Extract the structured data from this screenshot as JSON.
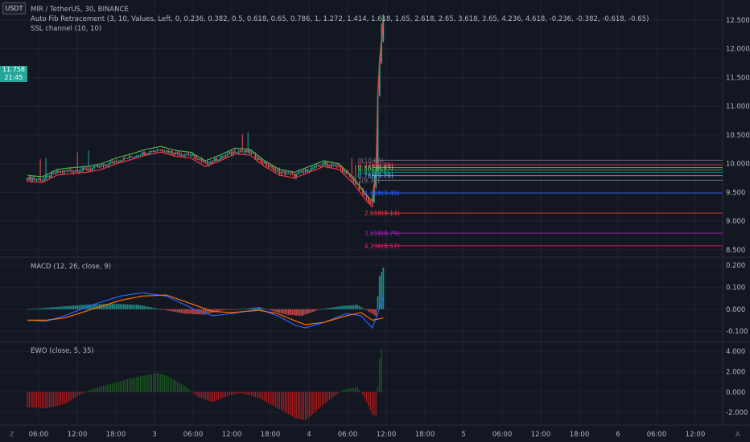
{
  "header": {
    "currency": "USDT",
    "symbol_line": "MIR / TetherUS, 30, BINANCE",
    "fib_indicator": "Auto Fib Retracement (3, 10, Values, Left, 0, 0.236, 0.382, 0.5, 0.618, 0.65, 0.786, 1, 1.272, 1.414, 1.618, 1.65, 2.618, 2.65, 3.618, 3.65, 4.236, 4.618, -0.236, -0.382, -0.618, -0.65)",
    "ssl_indicator": "SSL channel (10, 10)"
  },
  "current_price": {
    "value": "11.758",
    "countdown": "21:45"
  },
  "corner_labels": {
    "bottom_left": "Z",
    "bottom_right": "A"
  },
  "colors": {
    "background": "#131722",
    "grid": "#1f2330",
    "up": "#26a69a",
    "down": "#ef5350",
    "ssl_up": "#4caf50",
    "ssl_down": "#f23645",
    "macd": "#2962ff",
    "signal": "#ff6d00",
    "ewo_up": "#1b5e20",
    "ewo_down": "#b71c1c"
  },
  "chart_data": [
    {
      "type": "candlestick",
      "title": "MIR / TetherUS, 30, BINANCE",
      "x_ticks": [
        "06:00",
        "12:00",
        "18:00",
        "3",
        "06:00",
        "12:00",
        "18:00",
        "4",
        "06:00",
        "12:00",
        "18:00",
        "5",
        "06:00",
        "12:00",
        "18:00",
        "6",
        "06:00",
        "12:00"
      ],
      "y_ticks": [
        "12.500",
        "12.000",
        "11.500",
        "11.000",
        "10.500",
        "10.000",
        "9.500",
        "9.000",
        "8.500"
      ],
      "ylim": [
        8.4,
        12.85
      ],
      "price_path": [
        [
          0,
          9.75
        ],
        [
          8,
          9.72
        ],
        [
          16,
          9.85
        ],
        [
          24,
          9.88
        ],
        [
          32,
          9.9
        ],
        [
          40,
          9.95
        ],
        [
          48,
          10.05
        ],
        [
          56,
          10.12
        ],
        [
          64,
          10.2
        ],
        [
          72,
          10.25
        ],
        [
          80,
          10.18
        ],
        [
          88,
          10.15
        ],
        [
          96,
          10.0
        ],
        [
          104,
          10.1
        ],
        [
          112,
          10.22
        ],
        [
          120,
          10.2
        ],
        [
          128,
          10.0
        ],
        [
          136,
          9.85
        ],
        [
          144,
          9.8
        ],
        [
          152,
          9.9
        ],
        [
          160,
          10.0
        ],
        [
          168,
          9.95
        ],
        [
          176,
          9.7
        ],
        [
          183,
          9.4
        ],
        [
          186,
          9.3
        ],
        [
          188,
          9.85
        ],
        [
          189,
          11.2
        ],
        [
          190,
          11.75
        ],
        [
          192,
          12.55
        ]
      ],
      "fib_levels": [
        {
          "label": "0(10.06)",
          "price": 10.06,
          "color": "#787b86"
        },
        {
          "label": "0.236(9.98)",
          "price": 9.98,
          "color": "#f23645"
        },
        {
          "label": "0.382(9.93)",
          "price": 9.93,
          "color": "#81c784"
        },
        {
          "label": "0.5(9.89)",
          "price": 9.89,
          "color": "#4caf50"
        },
        {
          "label": "0.618(9.85)",
          "price": 9.85,
          "color": "#089981"
        },
        {
          "label": "0.786(9.79)",
          "price": 9.79,
          "color": "#64b5f6"
        },
        {
          "label": "1(9.71)",
          "price": 9.71,
          "color": "#787b86"
        },
        {
          "label": "1.618(9.49)",
          "price": 9.49,
          "color": "#2962ff"
        },
        {
          "label": "2.618(9.14)",
          "price": 9.14,
          "color": "#f23645"
        },
        {
          "label": "3.618(8.79)",
          "price": 8.79,
          "color": "#9c27b0"
        },
        {
          "label": "4.236(8.57)",
          "price": 8.57,
          "color": "#e91e63"
        }
      ]
    },
    {
      "type": "line",
      "title": "MACD (12, 26, close, 9)",
      "y_ticks": [
        "0.200",
        "0.100",
        "0.000",
        "-0.100"
      ],
      "ylim": [
        -0.14,
        0.23
      ],
      "macd": [
        [
          0,
          -0.05
        ],
        [
          10,
          -0.055
        ],
        [
          20,
          -0.03
        ],
        [
          35,
          0.02
        ],
        [
          50,
          0.06
        ],
        [
          62,
          0.075
        ],
        [
          75,
          0.06
        ],
        [
          90,
          0.0
        ],
        [
          100,
          -0.03
        ],
        [
          110,
          -0.02
        ],
        [
          125,
          0.0
        ],
        [
          135,
          -0.03
        ],
        [
          145,
          -0.075
        ],
        [
          150,
          -0.085
        ],
        [
          160,
          -0.06
        ],
        [
          172,
          -0.02
        ],
        [
          180,
          -0.03
        ],
        [
          186,
          -0.085
        ],
        [
          189,
          -0.02
        ],
        [
          192,
          0.06
        ]
      ],
      "signal": [
        [
          0,
          -0.05
        ],
        [
          10,
          -0.05
        ],
        [
          20,
          -0.04
        ],
        [
          35,
          0.0
        ],
        [
          50,
          0.04
        ],
        [
          62,
          0.06
        ],
        [
          75,
          0.065
        ],
        [
          90,
          0.02
        ],
        [
          100,
          -0.01
        ],
        [
          110,
          -0.015
        ],
        [
          125,
          -0.005
        ],
        [
          135,
          -0.02
        ],
        [
          145,
          -0.055
        ],
        [
          150,
          -0.07
        ],
        [
          160,
          -0.06
        ],
        [
          172,
          -0.03
        ],
        [
          180,
          -0.015
        ],
        [
          186,
          -0.05
        ],
        [
          192,
          -0.04
        ]
      ],
      "histogram": [
        [
          0,
          0.0
        ],
        [
          15,
          0.01
        ],
        [
          30,
          0.02
        ],
        [
          45,
          0.025
        ],
        [
          60,
          0.02
        ],
        [
          75,
          -0.005
        ],
        [
          85,
          -0.02
        ],
        [
          95,
          -0.025
        ],
        [
          105,
          -0.005
        ],
        [
          115,
          0.0
        ],
        [
          125,
          0.01
        ],
        [
          133,
          -0.01
        ],
        [
          140,
          -0.025
        ],
        [
          148,
          -0.03
        ],
        [
          158,
          0.0
        ],
        [
          170,
          0.015
        ],
        [
          178,
          0.02
        ],
        [
          184,
          -0.01
        ],
        [
          188,
          -0.03
        ],
        [
          189,
          0.06
        ],
        [
          190,
          0.15
        ],
        [
          192,
          0.19
        ]
      ]
    },
    {
      "type": "bar",
      "title": "EWO (close, 5, 35)",
      "y_ticks": [
        "4.000",
        "2.000",
        "0.000",
        "-2.000"
      ],
      "ylim": [
        -3.1,
        4.8
      ],
      "values": [
        [
          0,
          -1.5
        ],
        [
          10,
          -1.6
        ],
        [
          20,
          -1.2
        ],
        [
          28,
          -0.3
        ],
        [
          35,
          0.3
        ],
        [
          45,
          0.8
        ],
        [
          55,
          1.3
        ],
        [
          65,
          1.7
        ],
        [
          70,
          1.9
        ],
        [
          75,
          1.6
        ],
        [
          85,
          0.6
        ],
        [
          92,
          -0.5
        ],
        [
          100,
          -1.0
        ],
        [
          108,
          -0.4
        ],
        [
          115,
          -0.1
        ],
        [
          125,
          -0.6
        ],
        [
          135,
          -1.6
        ],
        [
          145,
          -2.6
        ],
        [
          150,
          -2.8
        ],
        [
          160,
          -1.2
        ],
        [
          170,
          0.2
        ],
        [
          178,
          0.5
        ],
        [
          182,
          -0.6
        ],
        [
          186,
          -2.2
        ],
        [
          188,
          -2.4
        ],
        [
          189,
          0.5
        ],
        [
          190,
          3.3
        ],
        [
          191,
          4.3
        ]
      ]
    }
  ]
}
